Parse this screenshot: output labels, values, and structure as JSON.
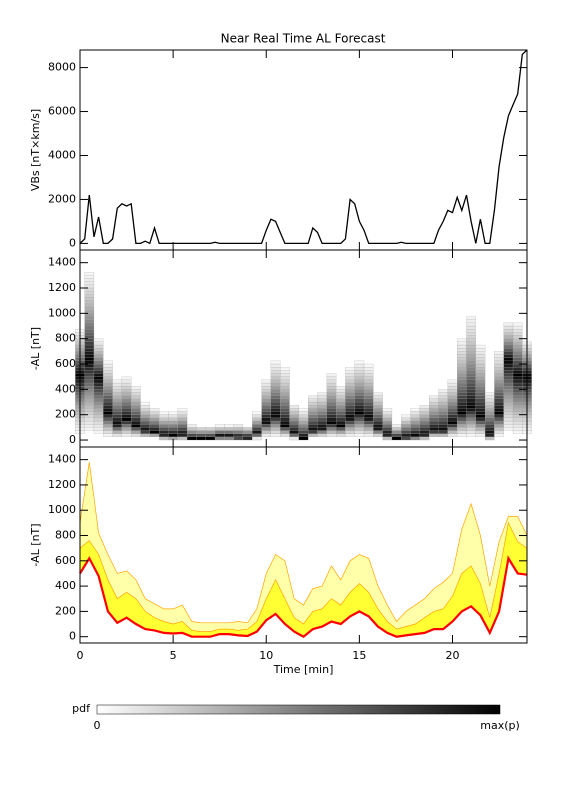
{
  "chart_data": [
    {
      "type": "line",
      "title": "Near Real Time AL Forecast",
      "y_label": "VBs [nT×km/s]",
      "x": [
        0,
        0.25,
        0.5,
        0.75,
        1,
        1.25,
        1.5,
        1.75,
        2,
        2.25,
        2.5,
        2.75,
        3,
        3.25,
        3.5,
        3.75,
        4,
        4.25,
        4.5,
        4.75,
        5,
        5.25,
        5.5,
        5.75,
        6,
        6.25,
        6.5,
        6.75,
        7,
        7.25,
        7.5,
        7.75,
        8,
        8.25,
        8.5,
        8.75,
        9,
        9.25,
        9.5,
        9.75,
        10,
        10.25,
        10.5,
        10.75,
        11,
        11.25,
        11.5,
        11.75,
        12,
        12.25,
        12.5,
        12.75,
        13,
        13.25,
        13.5,
        13.75,
        14,
        14.25,
        14.5,
        14.75,
        15,
        15.25,
        15.5,
        15.75,
        16,
        16.25,
        16.5,
        16.75,
        17,
        17.25,
        17.5,
        17.75,
        18,
        18.25,
        18.5,
        18.75,
        19,
        19.25,
        19.5,
        19.75,
        20,
        20.25,
        20.5,
        20.75,
        21,
        21.25,
        21.5,
        21.75,
        22,
        22.25,
        22.5,
        22.75,
        23,
        23.25,
        23.5,
        23.75,
        24
      ],
      "values": [
        0,
        200,
        2200,
        300,
        1200,
        0,
        0,
        200,
        1600,
        1800,
        1700,
        1800,
        0,
        0,
        100,
        0,
        700,
        0,
        0,
        0,
        0,
        0,
        0,
        0,
        0,
        0,
        0,
        0,
        0,
        50,
        0,
        0,
        0,
        0,
        0,
        0,
        0,
        0,
        0,
        0,
        600,
        1100,
        1000,
        500,
        0,
        0,
        0,
        0,
        0,
        0,
        700,
        500,
        0,
        0,
        0,
        0,
        0,
        200,
        2000,
        1800,
        1000,
        600,
        0,
        0,
        0,
        0,
        0,
        0,
        0,
        50,
        0,
        0,
        0,
        0,
        0,
        0,
        0,
        600,
        1000,
        1500,
        1400,
        2100,
        1500,
        2200,
        1000,
        0,
        1100,
        0,
        0,
        1500,
        3500,
        4800,
        5800,
        6300,
        6800,
        8600,
        8800
      ],
      "color": "#000000",
      "xlim": [
        0,
        24
      ],
      "xticks": [
        0,
        5,
        10,
        15,
        20
      ],
      "ylim": [
        -300,
        8800
      ],
      "yticks": [
        0,
        2000,
        4000,
        6000,
        8000
      ]
    },
    {
      "type": "heatmap",
      "y_label": "-AL [nT]",
      "x": [
        0,
        0.5,
        1,
        1.5,
        2,
        2.5,
        3,
        3.5,
        4,
        4.5,
        5,
        5.5,
        6,
        6.5,
        7,
        7.5,
        8,
        8.5,
        9,
        9.5,
        10,
        10.5,
        11,
        11.5,
        12,
        12.5,
        13,
        13.5,
        14,
        14.5,
        15,
        15.5,
        16,
        16.5,
        17,
        17.5,
        18,
        18.5,
        19,
        19.5,
        20,
        20.5,
        21,
        21.5,
        22,
        22.5,
        23,
        23.5,
        24
      ],
      "median": [
        500,
        620,
        480,
        200,
        110,
        150,
        100,
        60,
        50,
        30,
        25,
        30,
        0,
        0,
        0,
        20,
        20,
        10,
        5,
        40,
        130,
        180,
        100,
        40,
        0,
        60,
        80,
        120,
        100,
        160,
        200,
        160,
        80,
        30,
        0,
        10,
        20,
        30,
        60,
        60,
        120,
        200,
        240,
        170,
        30,
        200,
        620,
        500,
        490
      ],
      "upper": [
        900,
        1380,
        820,
        650,
        500,
        520,
        450,
        300,
        260,
        220,
        220,
        250,
        120,
        110,
        110,
        110,
        110,
        120,
        110,
        220,
        500,
        650,
        600,
        300,
        250,
        380,
        400,
        560,
        450,
        600,
        650,
        620,
        400,
        250,
        120,
        200,
        250,
        300,
        380,
        430,
        500,
        850,
        1050,
        800,
        400,
        750,
        950,
        950,
        800
      ],
      "xlim": [
        0,
        24
      ],
      "xticks": [
        0,
        5,
        10,
        15,
        20
      ],
      "ylim": [
        -55,
        1500
      ],
      "yticks": [
        0,
        200,
        400,
        600,
        800,
        1000,
        1200,
        1400
      ]
    },
    {
      "type": "band",
      "y_label": "-AL [nT]",
      "x_label": "Time [min]",
      "x": [
        0,
        0.5,
        1,
        1.5,
        2,
        2.5,
        3,
        3.5,
        4,
        4.5,
        5,
        5.5,
        6,
        6.5,
        7,
        7.5,
        8,
        8.5,
        9,
        9.5,
        10,
        10.5,
        11,
        11.5,
        12,
        12.5,
        13,
        13.5,
        14,
        14.5,
        15,
        15.5,
        16,
        16.5,
        17,
        17.5,
        18,
        18.5,
        19,
        19.5,
        20,
        20.5,
        21,
        21.5,
        22,
        22.5,
        23,
        23.5,
        24
      ],
      "median": [
        500,
        620,
        480,
        200,
        110,
        150,
        100,
        60,
        50,
        30,
        25,
        30,
        0,
        0,
        0,
        20,
        20,
        10,
        5,
        40,
        130,
        180,
        100,
        40,
        0,
        60,
        80,
        120,
        100,
        160,
        200,
        160,
        80,
        30,
        0,
        10,
        20,
        30,
        60,
        60,
        120,
        200,
        240,
        170,
        30,
        200,
        620,
        500,
        490
      ],
      "p75": [
        700,
        760,
        650,
        450,
        300,
        350,
        300,
        200,
        150,
        120,
        100,
        120,
        50,
        40,
        40,
        60,
        60,
        50,
        60,
        120,
        300,
        450,
        300,
        150,
        100,
        200,
        220,
        300,
        250,
        350,
        420,
        350,
        220,
        120,
        60,
        80,
        100,
        150,
        200,
        220,
        320,
        500,
        560,
        420,
        150,
        500,
        900,
        750,
        700
      ],
      "p95": [
        900,
        1380,
        820,
        650,
        500,
        520,
        450,
        300,
        260,
        220,
        220,
        250,
        120,
        110,
        110,
        110,
        110,
        120,
        110,
        220,
        500,
        650,
        600,
        300,
        250,
        380,
        400,
        560,
        450,
        600,
        650,
        620,
        400,
        250,
        120,
        200,
        250,
        300,
        380,
        430,
        500,
        850,
        1050,
        800,
        400,
        750,
        950,
        950,
        800
      ],
      "colors": {
        "median": "#ff0000",
        "inner": "#ffff33",
        "outer": "#ffffaa",
        "edge": "#ffa500"
      },
      "xlim": [
        0,
        24
      ],
      "xticks": [
        0,
        5,
        10,
        15,
        20
      ],
      "ylim": [
        -50,
        1500
      ],
      "yticks": [
        0,
        200,
        400,
        600,
        800,
        1000,
        1200,
        1400
      ]
    }
  ],
  "colorbar": {
    "label": "pdf",
    "min_label": "0",
    "max_label": "max(p)"
  }
}
